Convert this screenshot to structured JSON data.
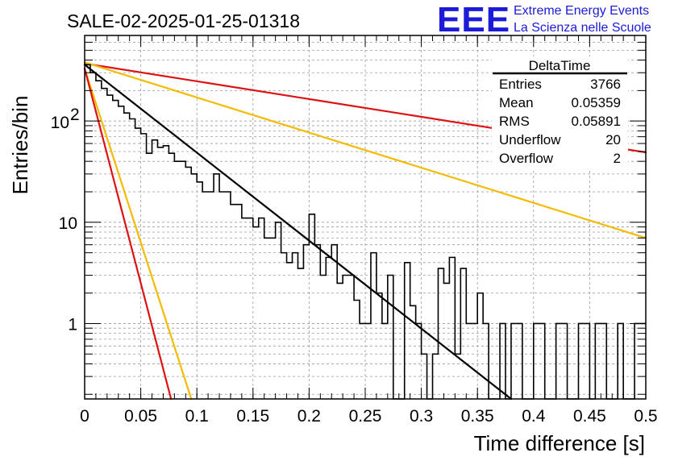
{
  "header": {
    "title": "SALE-02-2025-01-25-01318",
    "logo_text": "EEE",
    "logo_line1": "Extreme Energy Events",
    "logo_line2": "La Scienza nelle Scuole",
    "logo_color": "#1b1bd8"
  },
  "stats_box": {
    "title": "DeltaTime",
    "rows": [
      {
        "label": "Entries",
        "value": "3766"
      },
      {
        "label": "Mean",
        "value": "0.05359"
      },
      {
        "label": "RMS",
        "value": "0.05891"
      },
      {
        "label": "Underflow",
        "value": "20"
      },
      {
        "label": "Overflow",
        "value": "2"
      }
    ]
  },
  "chart_data": {
    "type": "line",
    "xlabel": "Time difference [s]",
    "ylabel": "Entries/bin",
    "xlim": [
      0,
      0.5
    ],
    "ylim": [
      0.18,
      700
    ],
    "y_scale": "log",
    "grid": true,
    "x_ticks": [
      {
        "value": 0,
        "label": "0"
      },
      {
        "value": 0.05,
        "label": "0.05"
      },
      {
        "value": 0.1,
        "label": "0.1"
      },
      {
        "value": 0.15,
        "label": "0.15"
      },
      {
        "value": 0.2,
        "label": "0.2"
      },
      {
        "value": 0.25,
        "label": "0.25"
      },
      {
        "value": 0.3,
        "label": "0.3"
      },
      {
        "value": 0.35,
        "label": "0.35"
      },
      {
        "value": 0.4,
        "label": "0.4"
      },
      {
        "value": 0.45,
        "label": "0.45"
      },
      {
        "value": 0.5,
        "label": "0.5"
      }
    ],
    "y_ticks": [
      {
        "value": 1,
        "label": "1"
      },
      {
        "value": 10,
        "label": "10"
      },
      {
        "value": 100,
        "label": "10",
        "exponent": "2"
      }
    ],
    "histogram": {
      "bin_width": 0.005,
      "color": "#000000",
      "values": [
        360,
        300,
        250,
        210,
        180,
        160,
        140,
        120,
        105,
        85,
        75,
        48,
        65,
        55,
        57,
        48,
        40,
        40,
        35,
        30,
        25,
        20,
        20,
        30,
        20,
        20,
        15,
        15,
        11,
        11,
        9,
        11,
        7,
        7,
        10,
        5,
        4,
        5,
        3.5,
        6,
        12,
        6,
        3,
        4.5,
        6,
        2.5,
        3,
        3,
        1.7,
        1,
        1,
        5,
        2,
        1,
        3,
        0,
        0,
        4,
        1.5,
        1,
        0.5,
        0,
        0.5,
        3.5,
        2.5,
        4.5,
        0.5,
        3.5,
        1,
        1,
        2,
        1,
        0,
        0,
        1,
        0,
        1,
        1,
        0,
        0,
        1,
        1,
        0,
        0,
        1,
        1,
        0,
        0,
        1,
        1,
        0,
        1,
        1,
        0,
        0,
        1,
        0,
        0,
        1,
        1
      ]
    },
    "fit_curves": [
      {
        "color": "#000000",
        "points": [
          [
            0,
            360
          ],
          [
            0.38,
            0.18
          ]
        ]
      },
      {
        "color": "#dd1111",
        "points": [
          [
            0,
            370
          ],
          [
            0.5,
            49
          ]
        ]
      },
      {
        "color": "#f5bb00",
        "points": [
          [
            0,
            380
          ],
          [
            0.5,
            7
          ]
        ]
      },
      {
        "color": "#f5bb00",
        "points": [
          [
            0,
            330
          ],
          [
            0.095,
            0.18
          ]
        ]
      },
      {
        "color": "#dd1111",
        "points": [
          [
            0,
            330
          ],
          [
            0.077,
            0.18
          ]
        ]
      }
    ]
  }
}
